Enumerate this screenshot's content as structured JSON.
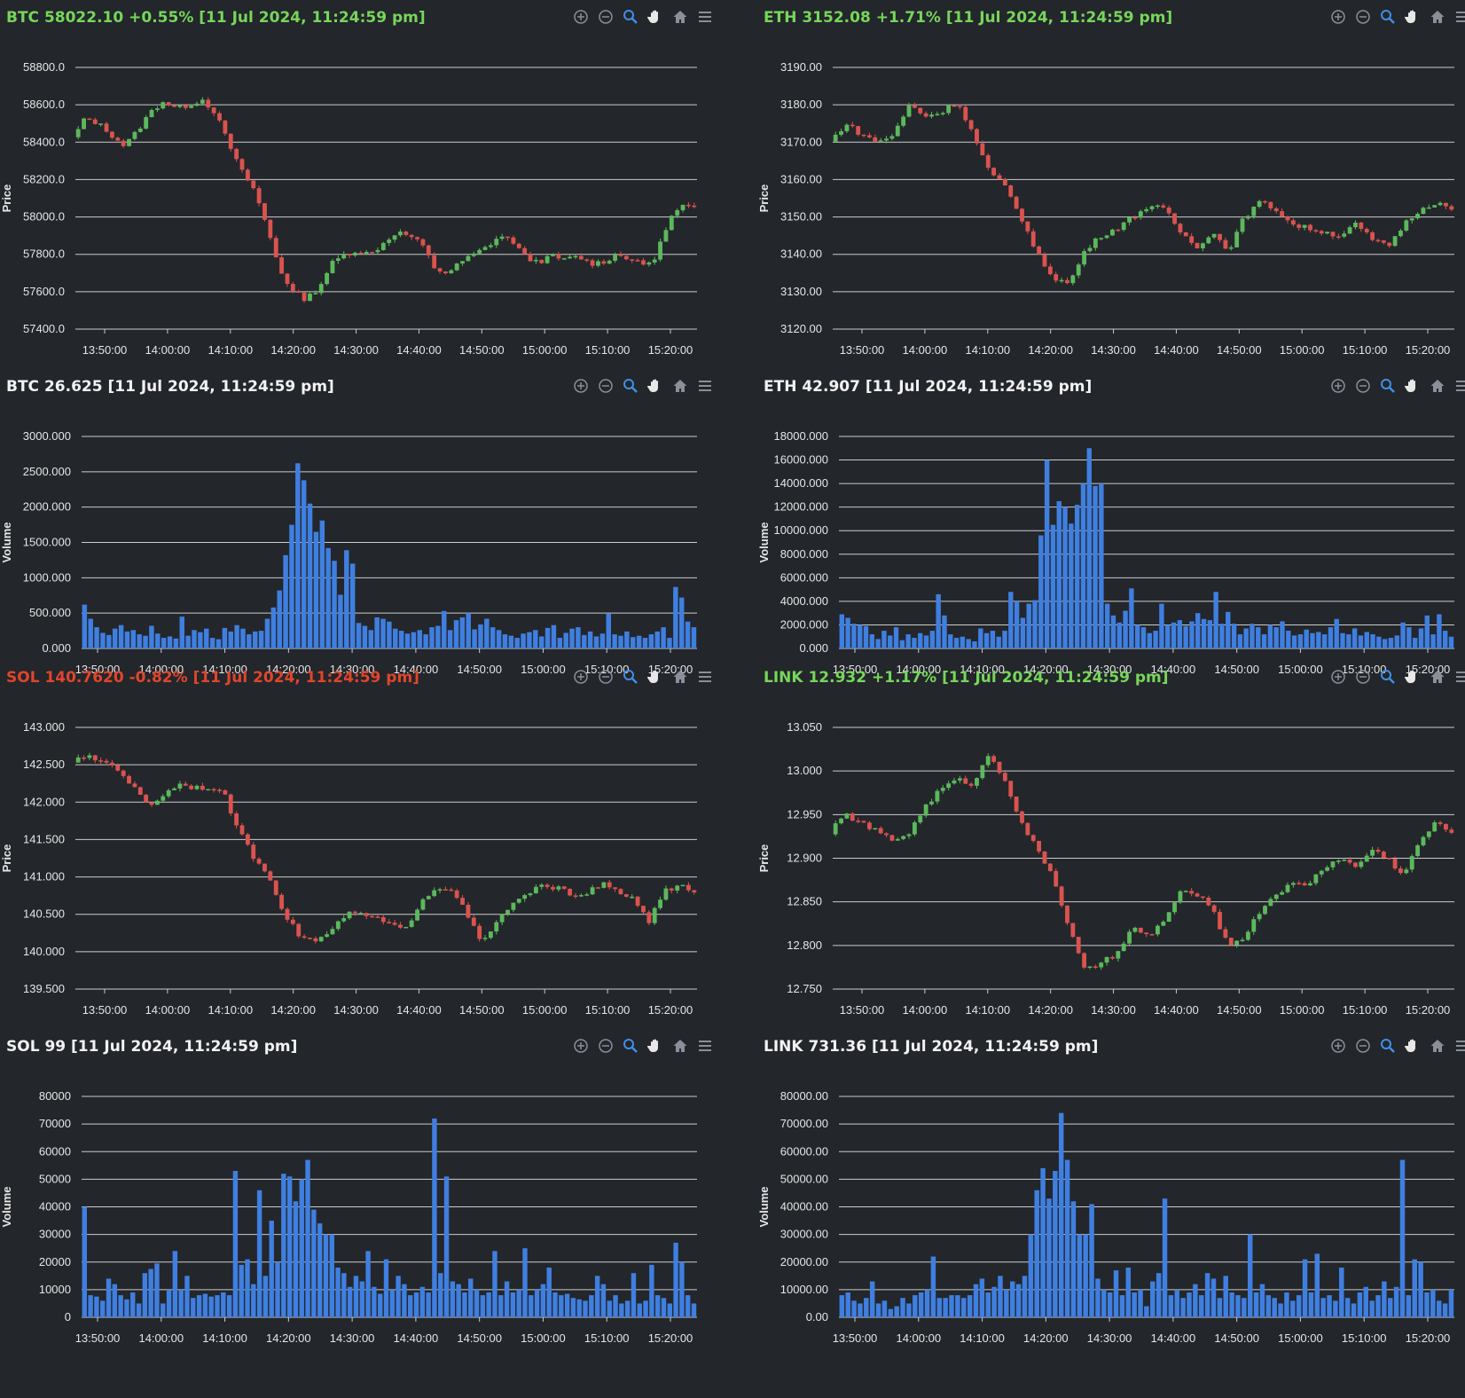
{
  "colors": {
    "up": "#5cb85c",
    "down": "#d9534f",
    "bar": "#3f7fe0",
    "grid": "#cccccc",
    "title_up": "#77d65a",
    "title_down": "#e0452c"
  },
  "toolbar_icons": [
    "zoom-in-icon",
    "zoom-out-icon",
    "magnifier-icon",
    "pan-hand-icon",
    "home-icon",
    "menu-icon"
  ],
  "panels": [
    {
      "id": "btc-price",
      "title": "BTC 58022.10 +0.55% [11 Jul 2024, 11:24:59 pm]",
      "title_color": "up",
      "chart_data": {
        "type": "candlestick",
        "ylabel": "Price",
        "ylim": [
          57400,
          58800
        ],
        "yticks": [
          "58800.0",
          "58600.0",
          "58400.0",
          "58200.0",
          "58000.0",
          "57800.0",
          "57600.0",
          "57400.0"
        ],
        "xticks": [
          "13:50:00",
          "14:00:00",
          "14:10:00",
          "14:20:00",
          "14:30:00",
          "14:40:00",
          "14:50:00",
          "15:00:00",
          "15:10:00",
          "15:20:00"
        ],
        "path": [
          58420,
          58530,
          58500,
          58440,
          58380,
          58460,
          58560,
          58620,
          58580,
          58600,
          58630,
          58560,
          58400,
          58250,
          58150,
          57950,
          57720,
          57600,
          57560,
          57620,
          57750,
          57800,
          57820,
          57800,
          57860,
          57920,
          57900,
          57850,
          57720,
          57700,
          57760,
          57800,
          57840,
          57900,
          57870,
          57780,
          57760,
          57790,
          57770,
          57790,
          57750,
          57760,
          57800,
          57780,
          57740,
          57780,
          57980,
          58060,
          58050
        ],
        "open": 58400,
        "close": 58022
      }
    },
    {
      "id": "eth-price",
      "title": "ETH 3152.08 +1.71% [11 Jul 2024, 11:24:59 pm]",
      "title_color": "up",
      "chart_data": {
        "type": "candlestick",
        "ylabel": "Price",
        "ylim": [
          3120,
          3190
        ],
        "yticks": [
          "3190.00",
          "3180.00",
          "3170.00",
          "3160.00",
          "3150.00",
          "3140.00",
          "3130.00",
          "3120.00"
        ],
        "xticks": [
          "13:50:00",
          "14:00:00",
          "14:10:00",
          "14:20:00",
          "14:30:00",
          "14:40:00",
          "14:50:00",
          "15:00:00",
          "15:10:00",
          "15:20:00"
        ],
        "path": [
          3170,
          3175,
          3172,
          3170,
          3172,
          3180,
          3177,
          3178,
          3181,
          3172,
          3162,
          3158,
          3150,
          3140,
          3134,
          3132,
          3141,
          3145,
          3147,
          3150,
          3153,
          3152,
          3146,
          3142,
          3146,
          3141,
          3150,
          3154,
          3152,
          3148,
          3147,
          3146,
          3145,
          3148,
          3144,
          3142,
          3148,
          3152,
          3154,
          3152
        ],
        "open": 3168,
        "close": 3152.08
      }
    },
    {
      "id": "btc-volume",
      "title": "BTC 26.625 [11 Jul 2024, 11:24:59 pm]",
      "title_color": "plain",
      "chart_data": {
        "type": "bar",
        "ylabel": "Volume",
        "ylim": [
          0,
          3000
        ],
        "yticks": [
          "3000.000",
          "2500.000",
          "2000.000",
          "1500.000",
          "1000.000",
          "500.000",
          "0.000"
        ],
        "xticks": [
          "13:50:00",
          "14:00:00",
          "14:10:00",
          "14:20:00",
          "14:30:00",
          "14:40:00",
          "14:50:00",
          "15:00:00",
          "15:10:00",
          "15:20:00"
        ],
        "values": [
          620,
          420,
          300,
          220,
          190,
          280,
          330,
          240,
          260,
          200,
          180,
          320,
          210,
          150,
          170,
          140,
          450,
          180,
          260,
          230,
          280,
          150,
          130,
          290,
          240,
          330,
          280,
          200,
          240,
          250,
          420,
          580,
          820,
          1320,
          1750,
          2620,
          2380,
          2050,
          1650,
          1810,
          1420,
          1240,
          760,
          1390,
          1200,
          360,
          320,
          260,
          440,
          420,
          380,
          280,
          250,
          210,
          230,
          260,
          200,
          300,
          320,
          530,
          260,
          400,
          440,
          500,
          270,
          340,
          420,
          300,
          260,
          200,
          180,
          150,
          210,
          230,
          260,
          170,
          290,
          330,
          150,
          220,
          280,
          300,
          190,
          240,
          170,
          210,
          490,
          200,
          180,
          240,
          160,
          180,
          150,
          200,
          240,
          300,
          150,
          870,
          720,
          380,
          300
        ]
      }
    },
    {
      "id": "eth-volume",
      "title": "ETH 42.907 [11 Jul 2024, 11:24:59 pm]",
      "title_color": "plain",
      "chart_data": {
        "type": "bar",
        "ylabel": "Volume",
        "ylim": [
          0,
          18000
        ],
        "yticks": [
          "18000.000",
          "16000.000",
          "14000.000",
          "12000.000",
          "10000.000",
          "8000.000",
          "6000.000",
          "4000.000",
          "2000.000",
          "0.000"
        ],
        "xticks": [
          "13:50:00",
          "14:00:00",
          "14:10:00",
          "14:20:00",
          "14:30:00",
          "14:40:00",
          "14:50:00",
          "15:00:00",
          "15:10:00",
          "15:20:00"
        ],
        "values": [
          2900,
          2600,
          2100,
          2000,
          1900,
          1200,
          800,
          1500,
          1100,
          1800,
          700,
          1200,
          900,
          1300,
          1100,
          1500,
          4600,
          2800,
          1200,
          900,
          1000,
          800,
          600,
          1700,
          1300,
          1500,
          1000,
          1500,
          4800,
          4000,
          2600,
          3800,
          4100,
          9600,
          16000,
          10500,
          12500,
          12000,
          10600,
          12200,
          14000,
          17000,
          13800,
          14000,
          3800,
          2800,
          2200,
          3200,
          5100,
          2000,
          1800,
          1300,
          1500,
          3800,
          2000,
          2200,
          2400,
          1900,
          2300,
          3000,
          2500,
          2400,
          4800,
          2100,
          3100,
          2100,
          1200,
          1700,
          2100,
          1800,
          1200,
          2000,
          1800,
          2300,
          1500,
          1100,
          1200,
          1600,
          1300,
          1400,
          1200,
          1800,
          2500,
          1300,
          1200,
          1700,
          1100,
          1400,
          1200,
          1000,
          800,
          900,
          1100,
          2200,
          1800,
          900,
          1700,
          2800,
          1200,
          2900,
          1500,
          1000
        ]
      }
    },
    {
      "id": "sol-price",
      "title": "SOL 140.7620 -0.82% [11 Jul 2024, 11:24:59 pm]",
      "title_color": "down",
      "chart_data": {
        "type": "candlestick",
        "ylabel": "Price",
        "ylim": [
          139.5,
          143.0
        ],
        "yticks": [
          "143.000",
          "142.500",
          "142.000",
          "141.500",
          "141.000",
          "140.500",
          "140.000",
          "139.500"
        ],
        "xticks": [
          "13:50:00",
          "14:00:00",
          "14:10:00",
          "14:20:00",
          "14:30:00",
          "14:40:00",
          "14:50:00",
          "15:00:00",
          "15:10:00",
          "15:20:00"
        ],
        "path": [
          142.55,
          142.6,
          142.55,
          142.45,
          142.2,
          141.95,
          142.1,
          142.25,
          142.2,
          142.2,
          142.1,
          141.6,
          141.25,
          141.0,
          140.5,
          140.2,
          140.15,
          140.25,
          140.5,
          140.5,
          140.45,
          140.35,
          140.3,
          140.7,
          140.85,
          140.85,
          140.5,
          140.1,
          140.4,
          140.65,
          140.75,
          140.9,
          140.85,
          140.75,
          140.8,
          140.9,
          140.8,
          140.7,
          140.4,
          140.8,
          140.9,
          140.8
        ],
        "open": 142.5,
        "close": 140.762
      }
    },
    {
      "id": "link-price",
      "title": "LINK 12.932 +1.17% [11 Jul 2024, 11:24:59 pm]",
      "title_color": "up",
      "chart_data": {
        "type": "candlestick",
        "ylabel": "Price",
        "ylim": [
          12.75,
          13.05
        ],
        "yticks": [
          "13.050",
          "13.000",
          "12.950",
          "12.900",
          "12.850",
          "12.800",
          "12.750"
        ],
        "xticks": [
          "13:50:00",
          "14:00:00",
          "14:10:00",
          "14:20:00",
          "14:30:00",
          "14:40:00",
          "14:50:00",
          "15:00:00",
          "15:10:00",
          "15:20:00"
        ],
        "path": [
          12.93,
          12.95,
          12.94,
          12.93,
          12.92,
          12.93,
          12.96,
          12.98,
          12.99,
          12.985,
          13.02,
          12.99,
          12.94,
          12.91,
          12.88,
          12.82,
          12.77,
          12.78,
          12.79,
          12.82,
          12.81,
          12.83,
          12.86,
          12.86,
          12.84,
          12.8,
          12.81,
          12.84,
          12.86,
          12.87,
          12.87,
          12.89,
          12.9,
          12.89,
          12.91,
          12.9,
          12.88,
          12.92,
          12.94,
          12.932
        ],
        "open": 12.93,
        "close": 12.932
      }
    },
    {
      "id": "sol-volume",
      "title": "SOL 99 [11 Jul 2024, 11:24:59 pm]",
      "title_color": "plain",
      "chart_data": {
        "type": "bar",
        "ylabel": "Volume",
        "ylim": [
          0,
          80000
        ],
        "yticks": [
          "80000",
          "70000",
          "60000",
          "50000",
          "40000",
          "30000",
          "20000",
          "10000",
          "0"
        ],
        "xticks": [
          "13:50:00",
          "14:00:00",
          "14:10:00",
          "14:20:00",
          "14:30:00",
          "14:40:00",
          "14:50:00",
          "15:00:00",
          "15:10:00",
          "15:20:00"
        ],
        "values": [
          40000,
          8000,
          7500,
          6000,
          14000,
          12000,
          8000,
          6500,
          9000,
          5000,
          16000,
          17500,
          19500,
          5000,
          10000,
          24000,
          10000,
          15000,
          7000,
          8000,
          8500,
          7500,
          8000,
          9000,
          8000,
          53000,
          19000,
          21000,
          12000,
          46000,
          15000,
          35000,
          20000,
          52000,
          51000,
          42000,
          50000,
          57000,
          39000,
          34000,
          30000,
          30000,
          18000,
          16000,
          11000,
          15000,
          13000,
          24000,
          11000,
          8500,
          21000,
          10000,
          15000,
          12000,
          8000,
          9000,
          11000,
          9000,
          72000,
          16000,
          51000,
          13000,
          12000,
          9000,
          14000,
          10000,
          8000,
          9000,
          24000,
          8000,
          13000,
          9000,
          10000,
          25000,
          8000,
          10000,
          12000,
          18000,
          9000,
          8000,
          8500,
          7000,
          6500,
          6000,
          8000,
          15000,
          12000,
          6000,
          8000,
          5000,
          6000,
          16000,
          5000,
          6000,
          19000,
          8000,
          7000,
          5000,
          27000,
          20000,
          8000,
          5000
        ]
      }
    },
    {
      "id": "link-volume",
      "title": "LINK 731.36 [11 Jul 2024, 11:24:59 pm]",
      "title_color": "plain",
      "chart_data": {
        "type": "bar",
        "ylabel": "Volume",
        "ylim": [
          0,
          80000
        ],
        "yticks": [
          "80000.00",
          "70000.00",
          "60000.00",
          "50000.00",
          "40000.00",
          "30000.00",
          "20000.00",
          "10000.00",
          "0.00"
        ],
        "xticks": [
          "13:50:00",
          "14:00:00",
          "14:10:00",
          "14:20:00",
          "14:30:00",
          "14:40:00",
          "14:50:00",
          "15:00:00",
          "15:10:00",
          "15:20:00"
        ],
        "values": [
          8000,
          9000,
          6000,
          5000,
          7000,
          13000,
          5000,
          6000,
          3000,
          4000,
          7000,
          5000,
          8000,
          9000,
          10000,
          22000,
          7000,
          7000,
          8000,
          8000,
          7000,
          8000,
          12000,
          14000,
          9000,
          11000,
          15000,
          10000,
          13000,
          12000,
          15000,
          30000,
          46000,
          54000,
          43000,
          53000,
          74000,
          57000,
          42000,
          30000,
          30000,
          41000,
          14000,
          10000,
          9000,
          17000,
          8000,
          18000,
          9000,
          10000,
          4000,
          13000,
          16000,
          43000,
          8000,
          10000,
          7000,
          9000,
          12000,
          8000,
          16000,
          14000,
          7000,
          15000,
          9000,
          8000,
          7000,
          30000,
          9000,
          12000,
          8000,
          7000,
          5000,
          9000,
          6000,
          8000,
          21000,
          9000,
          23000,
          7000,
          8000,
          6000,
          18000,
          7000,
          5000,
          9000,
          11000,
          6000,
          8000,
          13000,
          7000,
          11000,
          57000,
          8000,
          21000,
          20000,
          9000,
          10000,
          6000,
          5000,
          10000
        ]
      }
    }
  ]
}
